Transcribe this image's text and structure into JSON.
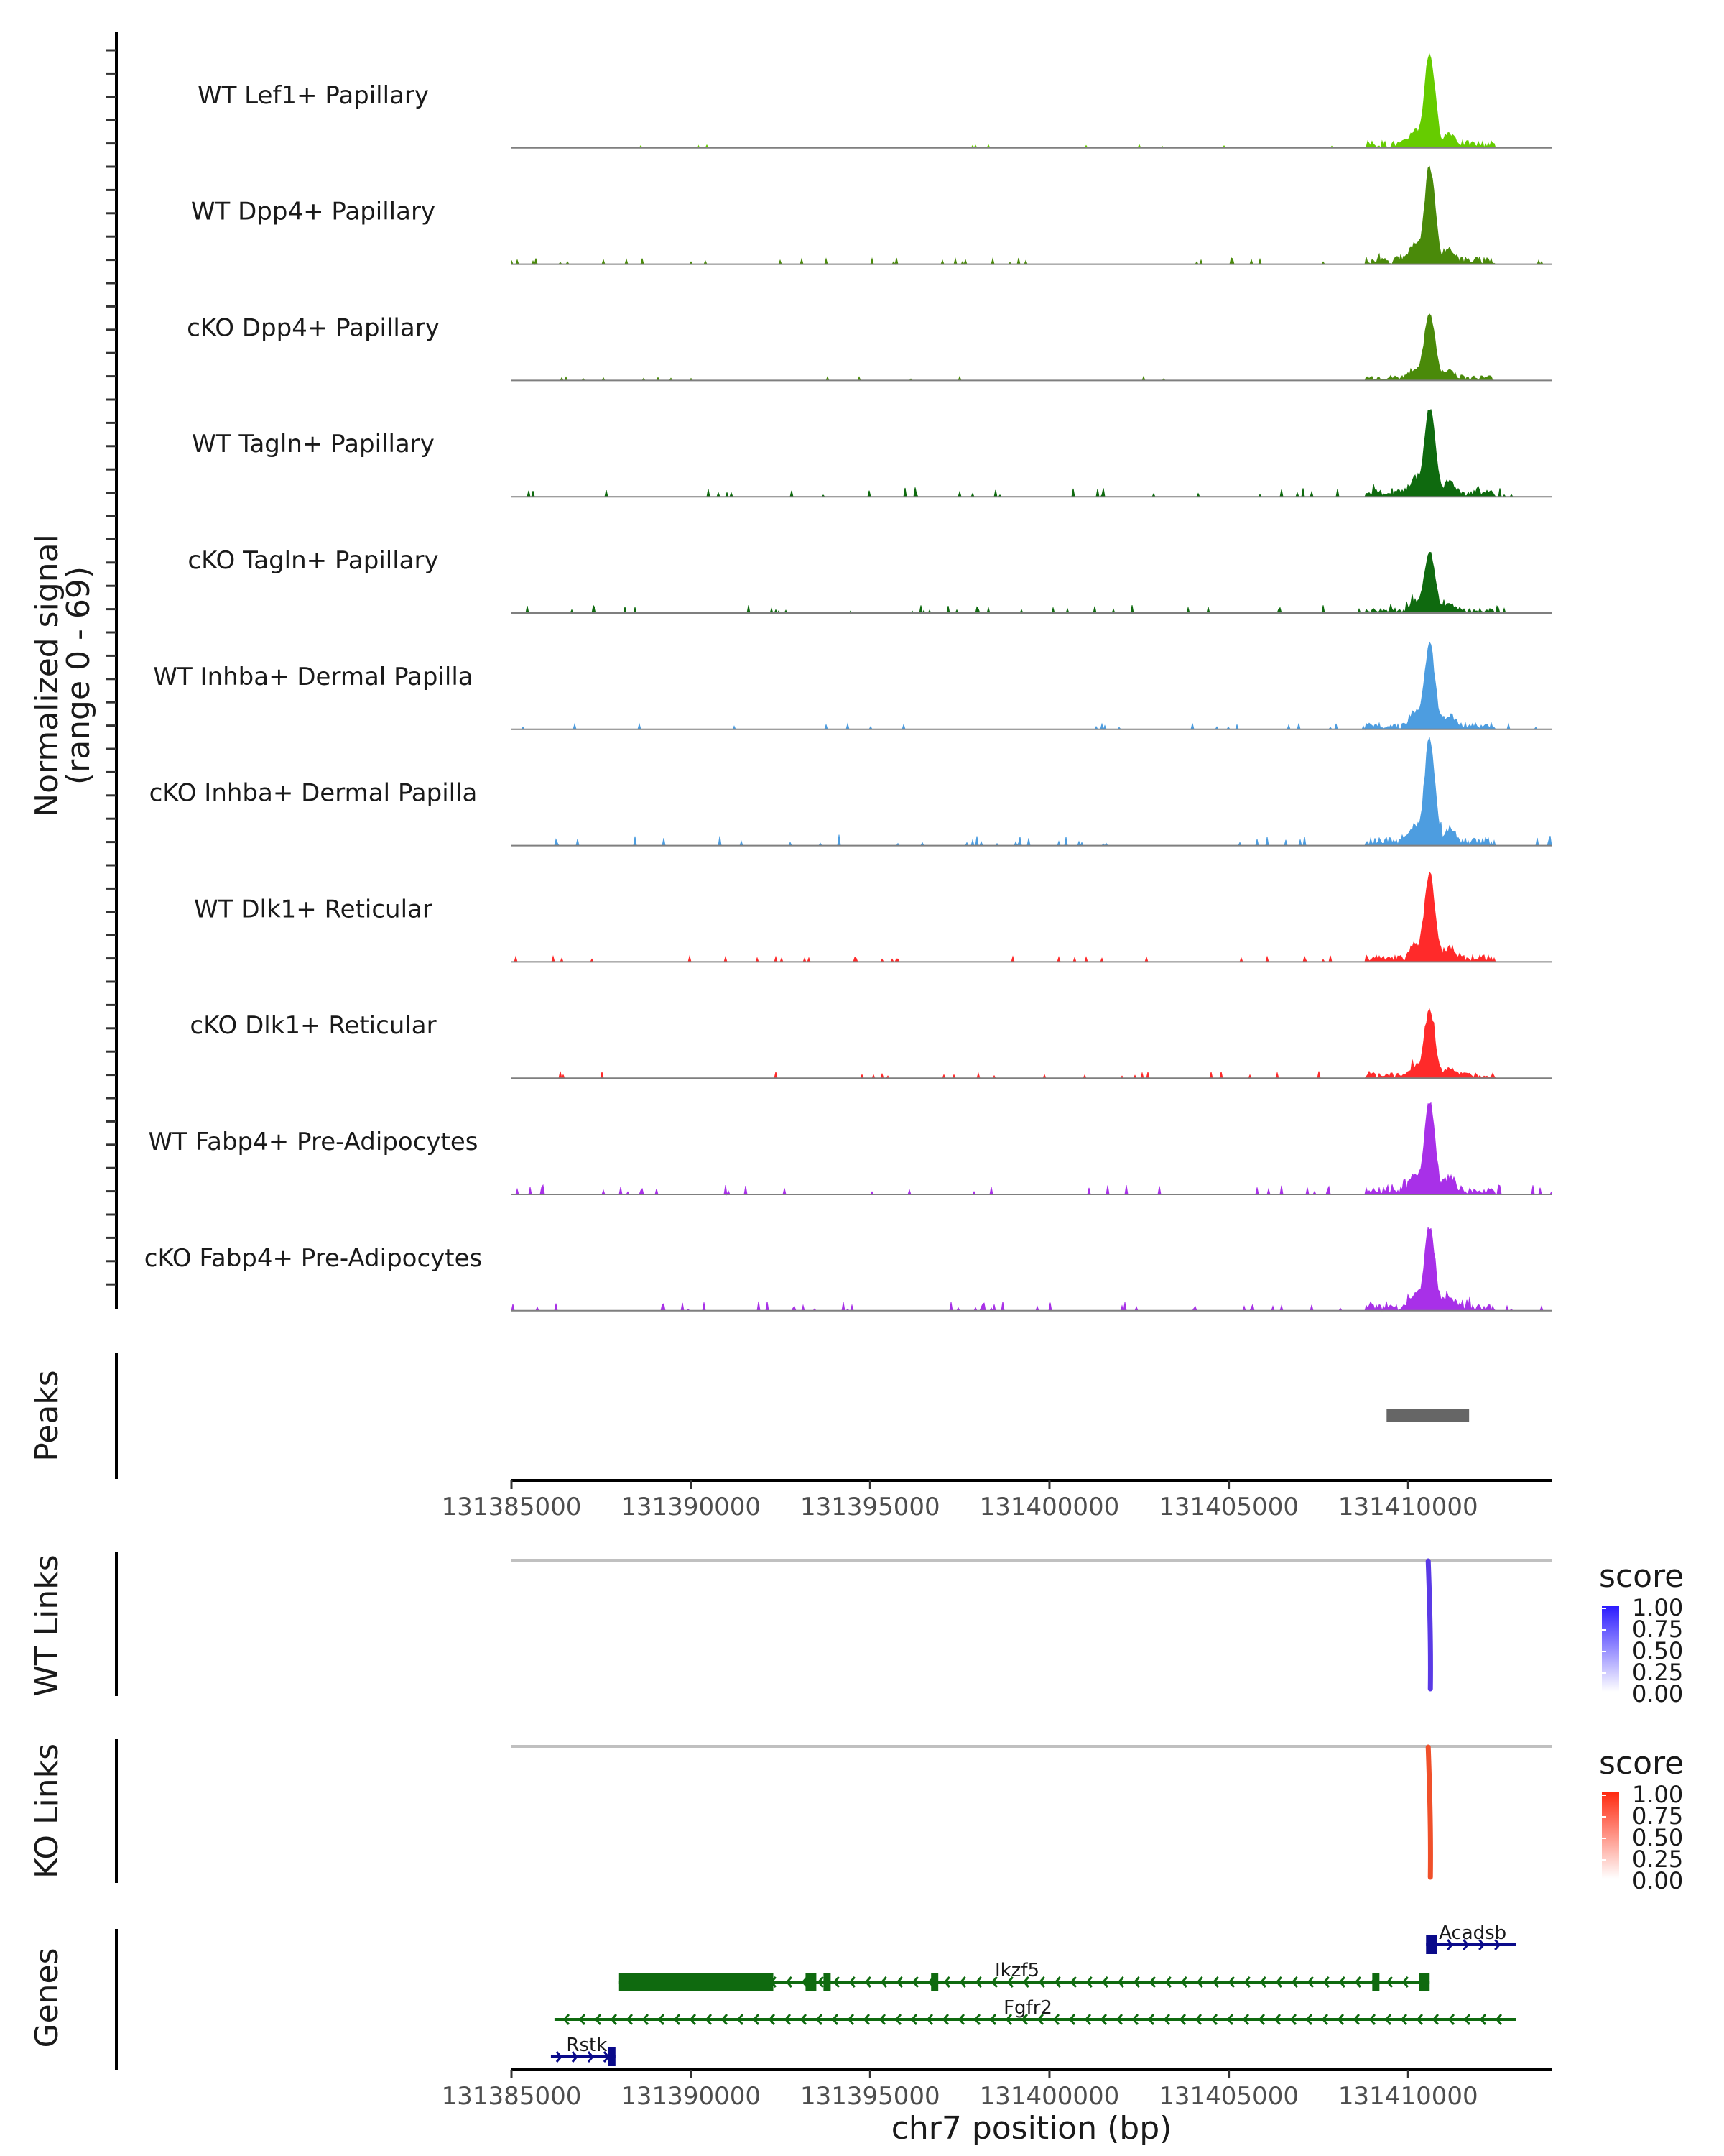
{
  "chart_data": {
    "type": "area",
    "chromosome": "chr7",
    "xlim": [
      131385000,
      131414000
    ],
    "x_ticks": [
      131385000,
      131390000,
      131395000,
      131400000,
      131405000,
      131410000
    ],
    "xlabel": "chr7 position (bp)",
    "coverage": {
      "ylabel_line1": "Normalized signal",
      "ylabel_line2": "(range 0 - 69)",
      "ylim": [
        0,
        69
      ],
      "tracks": [
        {
          "name": "WT Lef1+ Papillary",
          "color": "#66cc00",
          "peak": 58,
          "noise": 0.2,
          "side": 0.5
        },
        {
          "name": "WT Dpp4+ Papillary",
          "color": "#4a8a0a",
          "peak": 60,
          "noise": 0.6,
          "side": 0.5
        },
        {
          "name": "cKO Dpp4+ Papillary",
          "color": "#4a8a0a",
          "peak": 42,
          "noise": 0.3,
          "side": 0.45
        },
        {
          "name": "WT Tagln+ Papillary",
          "color": "#0f6a0f",
          "peak": 55,
          "noise": 1.0,
          "side": 0.55
        },
        {
          "name": "cKO Tagln+ Papillary",
          "color": "#0f6a0f",
          "peak": 38,
          "noise": 0.8,
          "side": 0.5
        },
        {
          "name": "WT Inhba+ Dermal Papilla",
          "color": "#4d9de0",
          "peak": 52,
          "noise": 0.6,
          "side": 0.55
        },
        {
          "name": "cKO Inhba+ Dermal Papilla",
          "color": "#4d9de0",
          "peak": 65,
          "noise": 1.2,
          "side": 0.5
        },
        {
          "name": "WT Dlk1+ Reticular",
          "color": "#ff2a2a",
          "peak": 55,
          "noise": 0.6,
          "side": 0.5
        },
        {
          "name": "cKO Dlk1+ Reticular",
          "color": "#ff2a2a",
          "peak": 42,
          "noise": 0.7,
          "side": 0.45
        },
        {
          "name": "WT Fabp4+ Pre-Adipocytes",
          "color": "#a830e8",
          "peak": 57,
          "noise": 1.0,
          "side": 0.6
        },
        {
          "name": "cKO Fabp4+ Pre-Adipocytes",
          "color": "#a830e8",
          "peak": 52,
          "noise": 1.0,
          "side": 0.55
        }
      ]
    },
    "peaks": {
      "label": "Peaks",
      "regions": [
        {
          "start": 131409400,
          "end": 131411700
        }
      ]
    },
    "links": [
      {
        "label": "WT Links",
        "legend_title": "score",
        "legend_ticks": [
          "1.00",
          "0.75",
          "0.50",
          "0.25",
          "0.00"
        ],
        "color_high": "#2b1aff",
        "line_color": "#5a3ae6",
        "position": 131410600
      },
      {
        "label": "KO Links",
        "legend_title": "score",
        "legend_ticks": [
          "1.00",
          "0.75",
          "0.50",
          "0.25",
          "0.00"
        ],
        "color_high": "#ff2a10",
        "line_color": "#f0502a",
        "position": 131410600
      }
    ],
    "genes": {
      "label": "Genes",
      "items": [
        {
          "name": "Acadsb",
          "start": 131410500,
          "end": 131413000,
          "strand": "+",
          "color": "#0a0a8a",
          "row": 0,
          "exons": [
            [
              131410500,
              131410800
            ]
          ]
        },
        {
          "name": "Ikzf5",
          "start": 131388000,
          "end": 131410600,
          "strand": "-",
          "color": "#0f6a0f",
          "row": 1,
          "exons": [
            [
              131388000,
              131392300
            ],
            [
              131393200,
              131393500
            ],
            [
              131393700,
              131393900
            ],
            [
              131396700,
              131396900
            ],
            [
              131409000,
              131409200
            ],
            [
              131410300,
              131410600
            ]
          ]
        },
        {
          "name": "Fgfr2",
          "start": 131386200,
          "end": 131413000,
          "strand": "-",
          "color": "#0f6a0f",
          "row": 2,
          "exons": []
        },
        {
          "name": "Rstk",
          "start": 131386100,
          "end": 131387900,
          "strand": "+",
          "color": "#0a0a8a",
          "row": 3,
          "exons": [
            [
              131387700,
              131387900
            ]
          ]
        }
      ]
    }
  }
}
